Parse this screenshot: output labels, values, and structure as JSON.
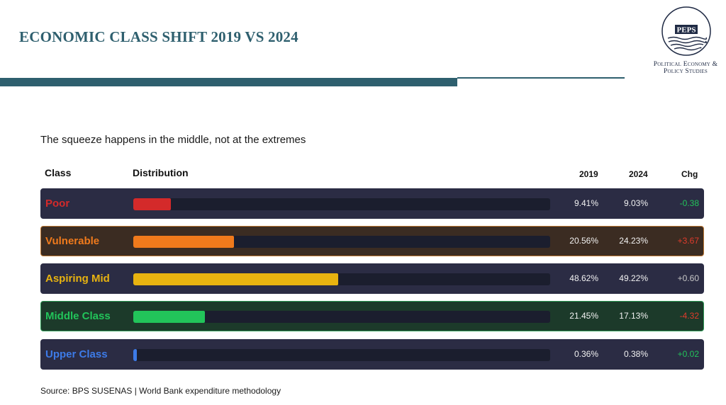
{
  "header": {
    "title": "ECONOMIC CLASS SHIFT 2019 VS 2024",
    "logo_text": "PEPS",
    "logo_caption_line1": "Political Economy &",
    "logo_caption_line2": "Policy Studies"
  },
  "subtitle": "The squeeze happens in the middle, not at the extremes",
  "columns": {
    "class": "Class",
    "distribution": "Distribution",
    "y2019": "2019",
    "y2024": "2024",
    "chg": "Chg"
  },
  "colors": {
    "poor": "#d42a2a",
    "vulnerable": "#f07a1c",
    "aspiring": "#e8b310",
    "middle": "#22c45a",
    "upper": "#3d7be8",
    "positive": "#22c45a",
    "negative": "#e03b2c",
    "neutral": "#c8c8c8"
  },
  "chart_data": {
    "type": "bar",
    "categories": [
      "Poor",
      "Vulnerable",
      "Aspiring Mid",
      "Middle Class",
      "Upper Class"
    ],
    "series": [
      {
        "name": "2019",
        "values": [
          9.41,
          20.56,
          48.62,
          21.45,
          0.36
        ]
      },
      {
        "name": "2024",
        "values": [
          9.03,
          24.23,
          49.22,
          17.13,
          0.38
        ]
      }
    ],
    "change": [
      -0.38,
      3.67,
      0.6,
      -4.32,
      0.02
    ],
    "xlim": [
      0,
      100
    ],
    "rows": [
      {
        "label": "Poor",
        "v2019": "9.41%",
        "v2024": "9.03%",
        "chg": "-0.38",
        "chg_color": "#22c45a",
        "color": "#d42a2a",
        "bg": "#2b2c44",
        "border": "#2b2c44",
        "pct": 9.03
      },
      {
        "label": "Vulnerable",
        "v2019": "20.56%",
        "v2024": "24.23%",
        "chg": "+3.67",
        "chg_color": "#e03b2c",
        "color": "#f07a1c",
        "bg": "#3b2c22",
        "border": "#c07a35",
        "pct": 24.23
      },
      {
        "label": "Aspiring Mid",
        "v2019": "48.62%",
        "v2024": "49.22%",
        "chg": "+0.60",
        "chg_color": "#c8c8c8",
        "color": "#e8b310",
        "bg": "#2b2c44",
        "border": "#2b2c44",
        "pct": 49.22
      },
      {
        "label": "Middle Class",
        "v2019": "21.45%",
        "v2024": "17.13%",
        "chg": "-4.32",
        "chg_color": "#e03b2c",
        "color": "#22c45a",
        "bg": "#1c3a2a",
        "border": "#2e9a55",
        "pct": 17.13
      },
      {
        "label": "Upper Class",
        "v2019": "0.36%",
        "v2024": "0.38%",
        "chg": "+0.02",
        "chg_color": "#22c45a",
        "color": "#3d7be8",
        "bg": "#2b2c44",
        "border": "#2b2c44",
        "pct": 0.38
      }
    ]
  },
  "source": "Source: BPS SUSENAS | World Bank expenditure methodology"
}
